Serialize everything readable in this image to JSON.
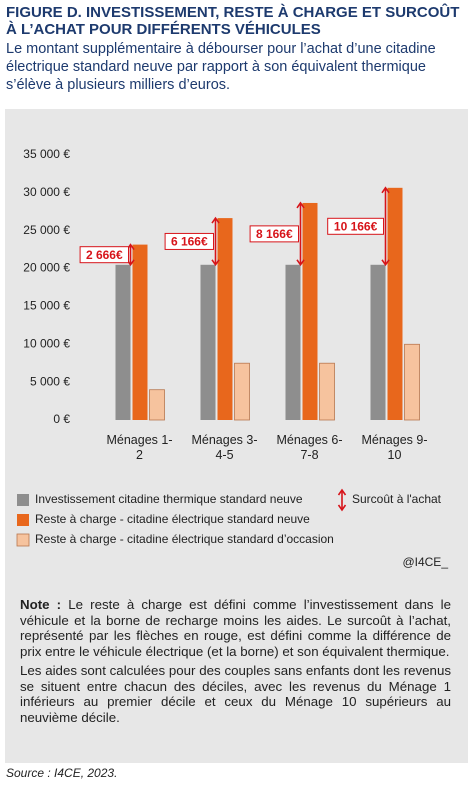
{
  "chart_data": {
    "type": "bar",
    "title": "FIGURE D. INVESTISSEMENT, RESTE À CHARGE ET SURCOÛT À L’ACHAT POUR DIFFÉRENTS VÉHICULES",
    "subtitle": "Le montant supplémentaire à débourser pour l’achat d’une citadine électrique standard neuve par rapport à son équivalent thermique s’élève à plusieurs milliers d’euros.",
    "categories": [
      "Ménages 1-2",
      "Ménages 3-4-5",
      "Ménages 6-7-8",
      "Ménages 9-10"
    ],
    "series": [
      {
        "name": "Investissement citadine thermique standard neuve",
        "color": "#8e8e8e",
        "values": [
          20500,
          20500,
          20500,
          20500
        ]
      },
      {
        "name": "Reste à charge - citadine électrique standard neuve",
        "color": "#e8671c",
        "values": [
          23166,
          26666,
          28666,
          30666
        ]
      },
      {
        "name": "Reste à charge - citadine électrique standard d’occasion",
        "color": "#f6c39e",
        "values": [
          4000,
          7500,
          7500,
          10000
        ]
      }
    ],
    "surcout": {
      "name": "Surcoût à l'achat",
      "color": "#d7141a",
      "values": [
        2666,
        6166,
        8166,
        10166
      ],
      "value_labels": [
        "2 666€",
        "6 166€",
        "8 166€",
        "10 166€"
      ]
    },
    "ylim": [
      0,
      35000
    ],
    "yticks": [
      {
        "value": 0,
        "label": "0 €"
      },
      {
        "value": 5000,
        "label": "5 000 €"
      },
      {
        "value": 10000,
        "label": "10 000 €"
      },
      {
        "value": 15000,
        "label": "15 000 €"
      },
      {
        "value": 20000,
        "label": "20 000 €"
      },
      {
        "value": 25000,
        "label": "25 000 €"
      },
      {
        "value": 30000,
        "label": "30 000 €"
      },
      {
        "value": 35000,
        "label": "35 000 €"
      }
    ],
    "grid": false,
    "credit": "@I4CE_"
  },
  "note": {
    "label": "Note :",
    "paragraphs": [
      "Le reste à charge est défini comme l’investissement dans le véhicule et la borne de recharge moins les aides. Le surcoût à l’achat, représenté par les flèches en rouge, est défini comme la différence de prix entre le véhicule électrique (et la borne) et son équivalent thermique.",
      "Les aides sont calculées pour des couples sans enfants dont les revenus se situent entre chacun des déciles, avec les revenus du Ménage 1 inférieurs au premier décile et ceux du Ménage 10 supérieurs au neuvième décile."
    ]
  },
  "source": "Source : I4CE, 2023."
}
